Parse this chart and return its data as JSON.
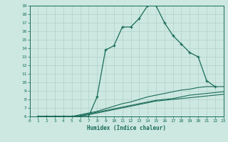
{
  "title": "",
  "xlabel": "Humidex (Indice chaleur)",
  "xlim": [
    0,
    23
  ],
  "ylim": [
    6,
    19
  ],
  "xticks": [
    0,
    1,
    2,
    3,
    4,
    5,
    6,
    7,
    8,
    9,
    10,
    11,
    12,
    13,
    14,
    15,
    16,
    17,
    18,
    19,
    20,
    21,
    22,
    23
  ],
  "yticks": [
    6,
    7,
    8,
    9,
    10,
    11,
    12,
    13,
    14,
    15,
    16,
    17,
    18,
    19
  ],
  "bg_color": "#cce8e0",
  "line_color": "#1a6b5a",
  "grid_color": "#aaccc4",
  "line1_x": [
    1,
    2,
    3,
    4,
    5,
    6,
    7,
    8,
    9,
    10,
    11,
    12,
    13,
    14,
    15,
    16,
    17,
    18,
    19,
    20,
    21,
    22
  ],
  "line1_y": [
    6,
    6,
    6,
    6,
    6,
    6,
    6,
    8.3,
    13.8,
    14.3,
    16.5,
    16.5,
    17.5,
    19.0,
    19.0,
    17.0,
    15.5,
    14.5,
    13.5,
    13.0,
    10.2,
    9.5
  ],
  "line2_x": [
    1,
    2,
    3,
    4,
    5,
    6,
    7,
    8,
    9,
    10,
    11,
    12,
    13,
    14,
    15,
    16,
    17,
    18,
    19,
    20,
    21,
    22,
    23
  ],
  "line2_y": [
    6,
    6,
    6,
    6,
    6,
    6.2,
    6.4,
    6.6,
    6.9,
    7.2,
    7.5,
    7.7,
    8.0,
    8.3,
    8.5,
    8.7,
    8.9,
    9.1,
    9.2,
    9.4,
    9.5,
    9.5,
    9.5
  ],
  "line3_x": [
    1,
    2,
    3,
    4,
    5,
    6,
    7,
    8,
    9,
    10,
    11,
    12,
    13,
    14,
    15,
    16,
    17,
    18,
    19,
    20,
    21,
    22,
    23
  ],
  "line3_y": [
    6,
    6,
    6,
    6,
    6,
    6.1,
    6.3,
    6.5,
    6.7,
    6.9,
    7.1,
    7.3,
    7.5,
    7.7,
    7.9,
    8.0,
    8.1,
    8.3,
    8.5,
    8.6,
    8.7,
    8.8,
    8.9
  ],
  "line4_x": [
    1,
    2,
    3,
    4,
    5,
    6,
    7,
    8,
    9,
    10,
    11,
    12,
    13,
    14,
    15,
    16,
    17,
    18,
    19,
    20,
    21,
    22,
    23
  ],
  "line4_y": [
    6,
    6,
    6,
    6,
    6,
    6.05,
    6.2,
    6.4,
    6.6,
    6.8,
    7.0,
    7.2,
    7.4,
    7.6,
    7.8,
    7.9,
    8.0,
    8.1,
    8.2,
    8.3,
    8.4,
    8.5,
    8.6
  ]
}
